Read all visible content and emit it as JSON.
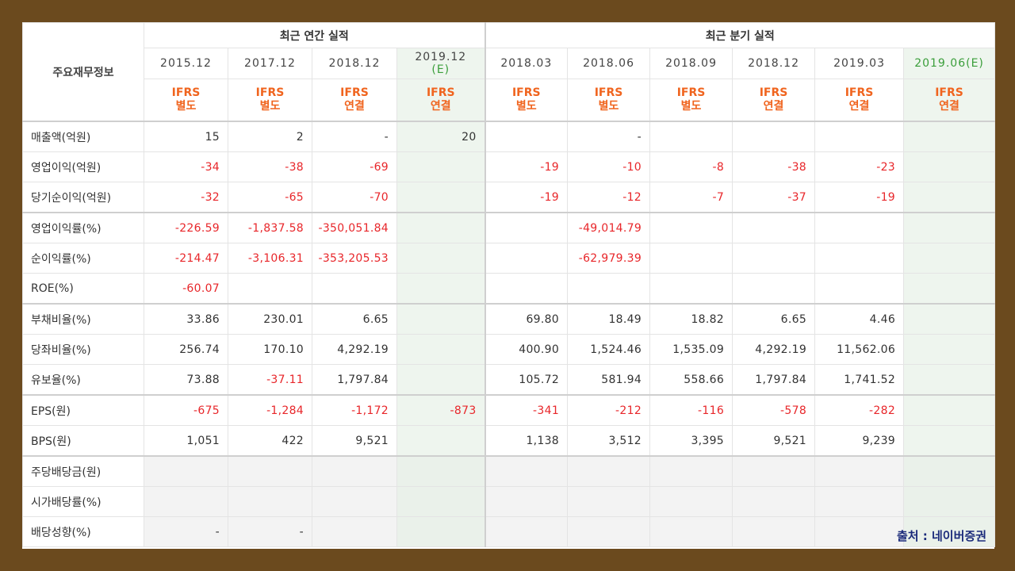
{
  "table": {
    "corner_label": "주요재무정보",
    "group_annual": "최근 연간 실적",
    "group_quarterly": "최근 분기 실적",
    "periods": [
      {
        "date": "2015.12",
        "ifrs": "IFRS",
        "basis": "별도",
        "estimate": false
      },
      {
        "date": "2017.12",
        "ifrs": "IFRS",
        "basis": "별도",
        "estimate": false
      },
      {
        "date": "2018.12",
        "ifrs": "IFRS",
        "basis": "연결",
        "estimate": false
      },
      {
        "date": "2019.12",
        "date2": "(E)",
        "ifrs": "IFRS",
        "basis": "연결",
        "estimate": true
      },
      {
        "date": "2018.03",
        "ifrs": "IFRS",
        "basis": "별도",
        "estimate": false
      },
      {
        "date": "2018.06",
        "ifrs": "IFRS",
        "basis": "별도",
        "estimate": false
      },
      {
        "date": "2018.09",
        "ifrs": "IFRS",
        "basis": "별도",
        "estimate": false
      },
      {
        "date": "2018.12",
        "ifrs": "IFRS",
        "basis": "연결",
        "estimate": false
      },
      {
        "date": "2019.03",
        "ifrs": "IFRS",
        "basis": "연결",
        "estimate": false
      },
      {
        "date": "2019.06",
        "date2": "(E)",
        "ifrs": "IFRS",
        "basis": "연결",
        "estimate": true
      }
    ],
    "rows": [
      {
        "label": "매출액(억원)",
        "values": [
          "15",
          "2",
          "-",
          "20",
          "",
          "-",
          "",
          "",
          "",
          ""
        ]
      },
      {
        "label": "영업이익(억원)",
        "values": [
          "-34",
          "-38",
          "-69",
          "",
          "-19",
          "-10",
          "-8",
          "-38",
          "-23",
          ""
        ]
      },
      {
        "label": "당기순이익(억원)",
        "values": [
          "-32",
          "-65",
          "-70",
          "",
          "-19",
          "-12",
          "-7",
          "-37",
          "-19",
          ""
        ]
      },
      {
        "label": "영업이익률(%)",
        "values": [
          "-226.59",
          "-1,837.58",
          "-350,051.84",
          "",
          "",
          "-49,014.79",
          "",
          "",
          "",
          ""
        ]
      },
      {
        "label": "순이익률(%)",
        "values": [
          "-214.47",
          "-3,106.31",
          "-353,205.53",
          "",
          "",
          "-62,979.39",
          "",
          "",
          "",
          ""
        ]
      },
      {
        "label": "ROE(%)",
        "values": [
          "-60.07",
          "",
          "",
          "",
          "",
          "",
          "",
          "",
          "",
          ""
        ]
      },
      {
        "label": "부채비율(%)",
        "values": [
          "33.86",
          "230.01",
          "6.65",
          "",
          "69.80",
          "18.49",
          "18.82",
          "6.65",
          "4.46",
          ""
        ]
      },
      {
        "label": "당좌비율(%)",
        "values": [
          "256.74",
          "170.10",
          "4,292.19",
          "",
          "400.90",
          "1,524.46",
          "1,535.09",
          "4,292.19",
          "11,562.06",
          ""
        ]
      },
      {
        "label": "유보율(%)",
        "values": [
          "73.88",
          "-37.11",
          "1,797.84",
          "",
          "105.72",
          "581.94",
          "558.66",
          "1,797.84",
          "1,741.52",
          ""
        ]
      },
      {
        "label": "EPS(원)",
        "values": [
          "-675",
          "-1,284",
          "-1,172",
          "-873",
          "-341",
          "-212",
          "-116",
          "-578",
          "-282",
          ""
        ]
      },
      {
        "label": "BPS(원)",
        "values": [
          "1,051",
          "422",
          "9,521",
          "",
          "1,138",
          "3,512",
          "3,395",
          "9,521",
          "9,239",
          ""
        ]
      },
      {
        "label": "주당배당금(원)",
        "values": [
          "",
          "",
          "",
          "",
          "",
          "",
          "",
          "",
          "",
          ""
        ]
      },
      {
        "label": "시가배당률(%)",
        "values": [
          "",
          "",
          "",
          "",
          "",
          "",
          "",
          "",
          "",
          ""
        ]
      },
      {
        "label": "배당성향(%)",
        "values": [
          "-",
          "-",
          "",
          "",
          "",
          "",
          "",
          "",
          "",
          ""
        ]
      }
    ]
  },
  "source_label": "출처 : 네이버증권",
  "colors": {
    "frame": "#6b4a1e",
    "ifrs": "#f0641e",
    "negative": "#e8262a",
    "estimate_bg": "#eef5ee",
    "estimate_text": "#3a9e3a",
    "source": "#1a2a7a"
  }
}
